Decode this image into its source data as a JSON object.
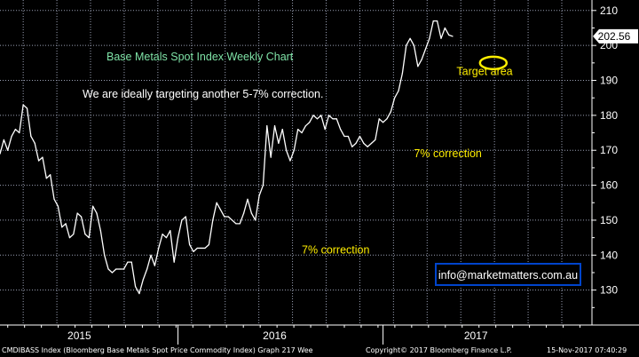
{
  "chart_data": {
    "type": "line",
    "title": "Base Metals Spot Index Weekly Chart",
    "subtitle": "We are ideally targeting another 5-7% correction.",
    "ylim": [
      120,
      213
    ],
    "xlim": [
      0,
      153
    ],
    "yticks": [
      130,
      140,
      150,
      160,
      170,
      180,
      190,
      200,
      210
    ],
    "year_labels": [
      {
        "label": "2015",
        "x": 20.5
      },
      {
        "label": "2016",
        "x": 71
      },
      {
        "label": "2017",
        "x": 123
      }
    ],
    "year_boundaries": [
      46,
      99
    ],
    "grid": true,
    "last_value": "202.56",
    "series": [
      {
        "values": [
          169,
          173,
          170,
          174,
          176,
          175,
          183,
          182,
          174,
          172,
          167,
          168,
          162,
          163,
          156,
          154,
          148,
          149,
          145,
          146,
          152,
          151,
          146,
          145,
          154,
          152,
          147,
          140,
          136,
          135,
          136,
          136,
          136,
          138,
          138,
          131,
          129,
          133,
          136,
          140,
          137,
          142,
          146,
          145,
          147,
          138,
          145,
          150,
          151,
          143,
          141,
          142,
          142,
          142,
          143,
          150,
          155,
          153,
          151,
          151,
          150,
          149,
          149,
          152,
          156,
          152,
          150,
          157,
          160,
          177,
          168,
          177,
          172,
          176,
          170,
          167,
          170,
          176,
          175,
          177,
          178,
          180,
          179,
          180,
          176,
          180,
          179,
          179,
          176,
          174,
          174,
          171,
          172,
          174,
          172,
          171,
          172,
          173,
          179,
          178,
          179,
          181,
          185,
          187,
          192,
          200,
          202,
          200,
          194,
          196,
          199,
          202,
          207,
          207,
          202,
          205,
          203,
          202.6
        ]
      }
    ],
    "annotations": [
      {
        "text": "7% correction",
        "x": 78,
        "y": 140.5
      },
      {
        "text": "7% correction",
        "x": 107,
        "y": 168
      },
      {
        "text": "Target area",
        "x": 118,
        "y": 191.5
      }
    ],
    "target_ellipse": {
      "x": 127.5,
      "y": 195,
      "label": "target-area-ellipse"
    },
    "watermark": "info@marketmatters.com.au"
  },
  "footer": {
    "left": "CMDIBASS Index (Bloomberg Base Metals Spot Price Commodity Index) Graph 217  Wee",
    "center": "Copyright© 2017 Bloomberg Finance L.P.",
    "right": "15-Nov-2017 07:40:29"
  },
  "colors": {
    "background": "#000000",
    "grid": "#9aa0b4",
    "line": "#ffffff",
    "title": "#7fe3a7",
    "annotation": "#ffee00",
    "marker_fill": "#ffffff",
    "marker_text": "#000000",
    "watermark_border": "#0044cc"
  }
}
